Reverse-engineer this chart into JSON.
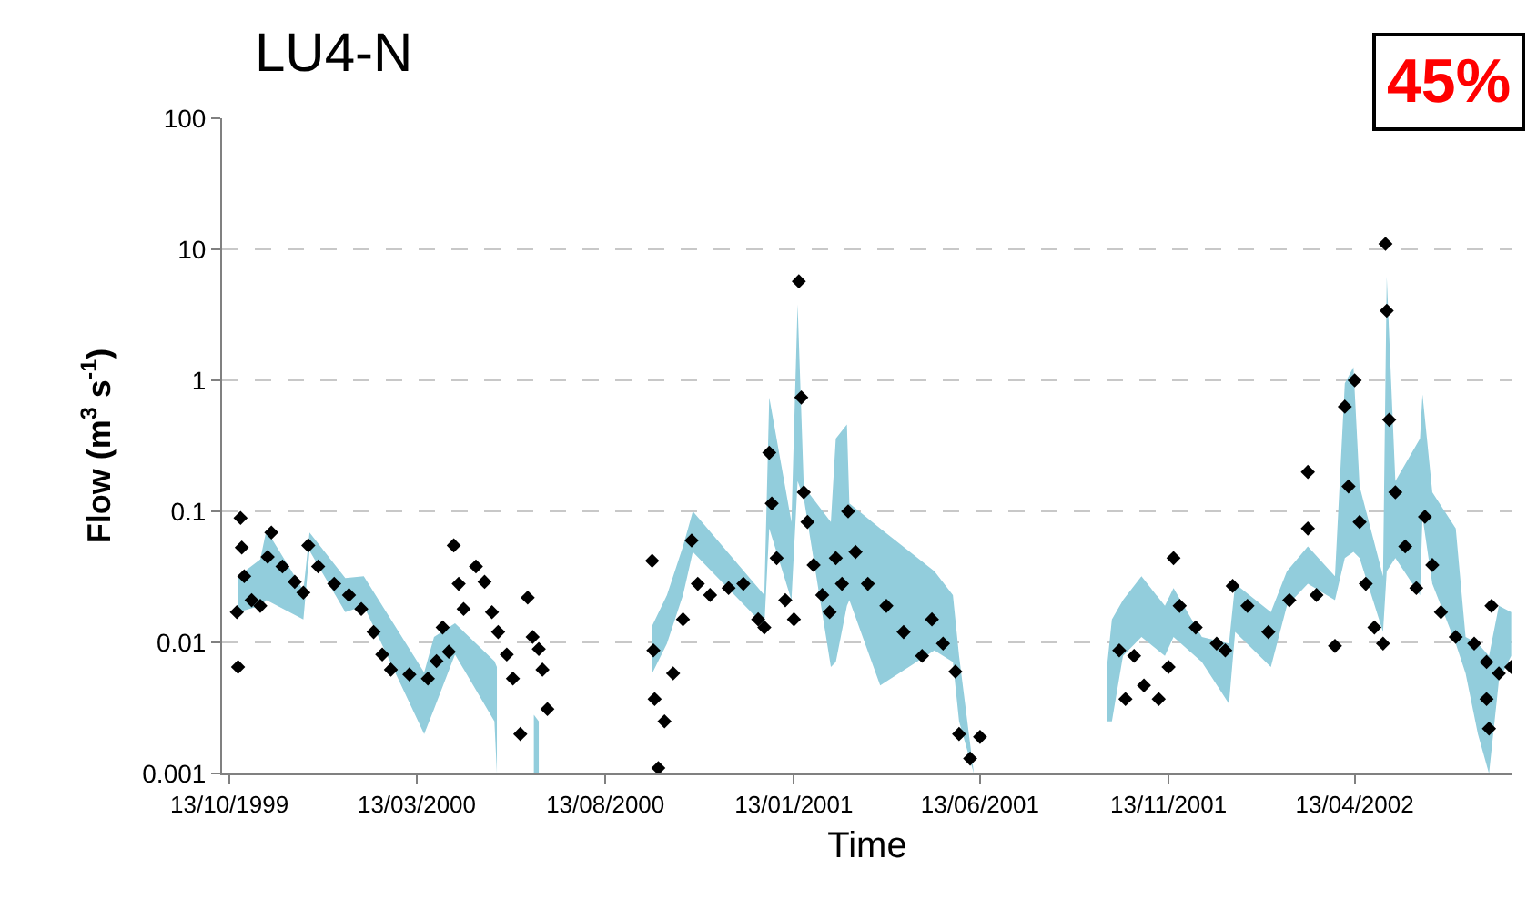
{
  "chart_data": {
    "type": "scatter",
    "title": "LU4-N",
    "xlabel": "Time",
    "ylabel": "Flow (m$^{3}$ s$^{-1}$)",
    "annotations": [
      "45%"
    ],
    "log": "y",
    "grid": "y",
    "xlim": [
      "1999-10-07",
      "2002-08-19"
    ],
    "xticks": [
      {
        "value": "1999-10-13",
        "label": "13/10/1999"
      },
      {
        "value": "2000-03-13",
        "label": "13/03/2000"
      },
      {
        "value": "2000-08-13",
        "label": "13/08/2000"
      },
      {
        "value": "2001-01-13",
        "label": "13/01/2001"
      },
      {
        "value": "2001-06-13",
        "label": "13/06/2001"
      },
      {
        "value": "2001-11-13",
        "label": "13/11/2001"
      },
      {
        "value": "2002-04-13",
        "label": "13/04/2002"
      }
    ],
    "ylim": [
      0.001,
      100
    ],
    "yticks": [
      0.001,
      0.01,
      0.1,
      1,
      10,
      100
    ],
    "series": [
      {
        "type": "line",
        "color": "#92cddc",
        "x": [
          "1999-10-20",
          "1999-11-07",
          "1999-11-12",
          "1999-12-12",
          "1999-12-17",
          "2000-01-15",
          "2000-01-30",
          "2000-03-19",
          "2000-03-27",
          "2000-04-13",
          "2000-05-15",
          "2000-05-17"
        ],
        "values": [
          null,
          null,
          null,
          null,
          null,
          null,
          null,
          null,
          null,
          null,
          null,
          null
        ],
        "upper": [
          0.032,
          0.043,
          0.072,
          0.025,
          0.069,
          0.031,
          0.032,
          0.0059,
          0.011,
          0.014,
          0.0072,
          0.0065
        ],
        "lower": [
          0.017,
          0.019,
          0.021,
          0.015,
          0.05,
          0.017,
          0.019,
          0.002,
          0.0031,
          0.0081,
          0.0025,
          0.001
        ]
      },
      {
        "type": "line",
        "color": "#92cddc",
        "x": [
          "2000-06-16",
          "2000-06-20"
        ],
        "values": [
          null,
          null
        ],
        "upper": [
          0.0028,
          0.0025
        ],
        "lower": [
          0.001,
          0.001
        ]
      },
      {
        "type": "line",
        "color": "#92cddc",
        "x": [
          "2000-09-20",
          "2000-10-02",
          "2000-10-15",
          "2000-10-23",
          "2000-12-20",
          "2000-12-24",
          "2001-01-11",
          "2001-01-16",
          "2001-01-21",
          "2001-02-12",
          "2001-02-16",
          "2001-02-25",
          "2001-02-27",
          "2001-03-24",
          "2001-05-07",
          "2001-05-22",
          "2001-05-27",
          "2001-06-08"
        ],
        "values": [
          null,
          null,
          null,
          null,
          null,
          null,
          null,
          null,
          null,
          null,
          null,
          null,
          null,
          null,
          null,
          null,
          null,
          null
        ],
        "upper": [
          0.0134,
          0.023,
          0.054,
          0.1,
          0.023,
          0.74,
          0.083,
          3.8,
          0.155,
          0.083,
          0.36,
          0.46,
          0.115,
          0.074,
          0.035,
          0.023,
          0.0079,
          0.001
        ],
        "lower": [
          0.0058,
          0.0098,
          0.023,
          0.049,
          0.0134,
          0.074,
          0.021,
          0.17,
          0.126,
          0.0065,
          0.0071,
          0.019,
          0.021,
          0.0047,
          0.0087,
          0.0071,
          0.0025,
          0.001
        ]
      },
      {
        "type": "line",
        "color": "#92cddc",
        "x": [
          "2001-09-24",
          "2001-09-28",
          "2001-10-07",
          "2001-10-22",
          "2001-11-10",
          "2001-11-17",
          "2001-12-10",
          "2002-01-01",
          "2002-01-06",
          "2002-02-04",
          "2002-02-17",
          "2002-03-06",
          "2002-03-28",
          "2002-04-05",
          "2002-04-12",
          "2002-04-17",
          "2002-05-06",
          "2002-05-09",
          "2002-05-16",
          "2002-06-05",
          "2002-06-07",
          "2002-06-15",
          "2002-07-04",
          "2002-07-12",
          "2002-07-22",
          "2002-07-31",
          "2002-08-08",
          "2002-08-18"
        ],
        "values": [
          null,
          null,
          null,
          null,
          null,
          null,
          null,
          null,
          null,
          null,
          null,
          null,
          null,
          null,
          null,
          null,
          null,
          null,
          null,
          null,
          null,
          null,
          null,
          null,
          null,
          null,
          null,
          null
        ],
        "upper": [
          0.0065,
          0.015,
          0.021,
          0.032,
          0.019,
          0.026,
          0.011,
          0.0098,
          0.028,
          0.017,
          0.035,
          0.054,
          0.032,
          0.95,
          1.26,
          0.155,
          0.032,
          6.2,
          0.17,
          0.36,
          0.78,
          0.14,
          0.074,
          0.011,
          0.0098,
          0.0079,
          0.019,
          0.017
        ],
        "lower": [
          0.0025,
          0.0025,
          0.0079,
          0.011,
          0.0079,
          0.011,
          0.0071,
          0.0034,
          0.012,
          0.0065,
          0.019,
          0.028,
          0.021,
          0.044,
          0.049,
          0.044,
          0.012,
          0.035,
          0.044,
          0.023,
          0.091,
          0.028,
          0.0098,
          0.0058,
          0.002,
          0.001,
          0.0051,
          0.0079
        ]
      },
      {
        "color": "#000000",
        "marker": "diamond",
        "x": [
          "1999-10-20",
          "1999-10-19",
          "1999-10-22",
          "1999-10-23",
          "1999-10-25",
          "1999-10-31",
          "1999-11-07",
          "1999-11-13",
          "1999-11-16",
          "1999-11-25",
          "1999-12-05",
          "1999-12-12",
          "1999-12-16",
          "1999-12-24",
          "2000-01-06",
          "2000-01-18",
          "2000-01-28",
          "2000-02-07",
          "2000-02-14",
          "2000-02-21",
          "2000-03-07",
          "2000-03-22",
          "2000-03-29",
          "2000-04-03",
          "2000-04-08",
          "2000-04-12",
          "2000-04-16",
          "2000-04-20",
          "2000-04-30",
          "2000-05-07",
          "2000-05-13",
          "2000-05-18",
          "2000-05-25",
          "2000-05-30",
          "2000-06-05",
          "2000-06-11",
          "2000-06-15",
          "2000-06-20",
          "2000-06-23",
          "2000-06-27",
          "2000-09-20",
          "2000-09-21",
          "2000-09-22",
          "2000-09-25",
          "2000-09-30",
          "2000-10-07",
          "2000-10-15",
          "2000-10-22",
          "2000-10-27",
          "2000-11-06",
          "2000-11-21",
          "2000-12-03",
          "2000-12-15",
          "2000-12-20",
          "2000-12-24",
          "2000-12-26",
          "2000-12-30",
          "2001-01-06",
          "2001-01-13",
          "2001-01-17",
          "2001-01-19",
          "2001-01-21",
          "2001-01-24",
          "2001-01-29",
          "2001-02-05",
          "2001-02-11",
          "2001-02-16",
          "2001-02-21",
          "2001-02-26",
          "2001-03-04",
          "2001-03-14",
          "2001-03-29",
          "2001-04-12",
          "2001-04-27",
          "2001-05-05",
          "2001-05-14",
          "2001-05-24",
          "2001-05-27",
          "2001-06-05",
          "2001-06-13",
          "2001-10-04",
          "2001-10-09",
          "2001-10-16",
          "2001-10-24",
          "2001-11-05",
          "2001-11-13",
          "2001-11-17",
          "2001-11-22",
          "2001-12-05",
          "2001-12-22",
          "2001-12-29",
          "2002-01-04",
          "2002-01-16",
          "2002-02-02",
          "2002-02-19",
          "2002-03-06",
          "2002-03-06",
          "2002-03-13",
          "2002-03-28",
          "2002-04-05",
          "2002-04-08",
          "2002-04-13",
          "2002-04-17",
          "2002-04-22",
          "2002-04-29",
          "2002-05-06",
          "2002-05-08",
          "2002-05-09",
          "2002-05-11",
          "2002-05-16",
          "2002-05-24",
          "2002-06-02",
          "2002-06-09",
          "2002-06-15",
          "2002-06-22",
          "2002-07-04",
          "2002-07-19",
          "2002-07-29",
          "2002-07-29",
          "2002-07-31",
          "2002-08-02",
          "2002-08-08",
          "2002-08-18"
        ],
        "values": [
          0.0065,
          0.017,
          0.089,
          0.053,
          0.032,
          0.021,
          0.019,
          0.045,
          0.069,
          0.038,
          0.029,
          0.024,
          0.055,
          0.038,
          0.028,
          0.023,
          0.018,
          0.012,
          0.0081,
          0.0062,
          0.0057,
          0.0053,
          0.0072,
          0.013,
          0.0085,
          0.055,
          0.028,
          0.018,
          0.038,
          0.029,
          0.017,
          0.012,
          0.0081,
          0.0053,
          0.002,
          0.022,
          0.011,
          0.0089,
          0.0062,
          0.0031,
          0.042,
          0.0087,
          0.0037,
          0.0011,
          0.0025,
          0.0058,
          0.015,
          0.06,
          0.028,
          0.023,
          0.026,
          0.028,
          0.015,
          0.013,
          0.28,
          0.115,
          0.044,
          0.021,
          0.015,
          5.7,
          0.74,
          0.14,
          0.083,
          0.039,
          0.023,
          0.017,
          0.044,
          0.028,
          0.1,
          0.049,
          0.028,
          0.019,
          0.012,
          0.0079,
          0.015,
          0.0098,
          0.006,
          0.002,
          0.0013,
          0.0019,
          0.0087,
          0.0037,
          0.0079,
          0.0047,
          0.0037,
          0.0065,
          0.044,
          0.019,
          0.013,
          0.0098,
          0.0087,
          0.027,
          0.019,
          0.012,
          0.021,
          0.2,
          0.074,
          0.023,
          0.0094,
          0.63,
          0.155,
          1.0,
          0.083,
          0.028,
          0.013,
          0.0098,
          11,
          3.4,
          0.5,
          0.14,
          0.054,
          0.026,
          0.091,
          0.039,
          0.017,
          0.011,
          0.0098,
          0.0071,
          0.0037,
          0.0022,
          0.019,
          0.0058,
          0.0065
        ]
      }
    ]
  }
}
